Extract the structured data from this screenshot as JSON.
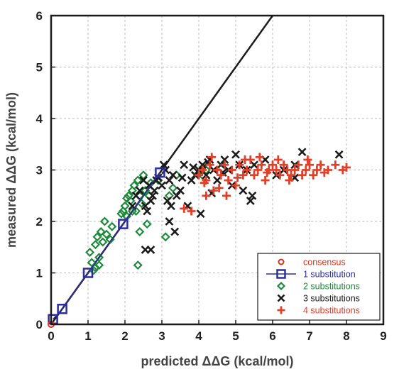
{
  "chart_data": {
    "type": "scatter",
    "xlabel": "predicted ΔΔG (kcal/mol)",
    "ylabel": "measured ΔΔG (kcal/mol)",
    "xlim": [
      0,
      9
    ],
    "ylim": [
      0,
      6
    ],
    "xticks": [
      "0",
      "1",
      "2",
      "3",
      "4",
      "5",
      "6",
      "7",
      "8",
      "9"
    ],
    "yticks": [
      "0",
      "1",
      "2",
      "3",
      "4",
      "5",
      "6"
    ],
    "grid": true,
    "legend_position": "bottom-right",
    "reference_line": {
      "from": [
        0,
        0
      ],
      "to": [
        6,
        6
      ],
      "color": "#1a1a1a"
    },
    "series": [
      {
        "name": "consensus",
        "marker": "circle",
        "color": "#d9331f",
        "points": [
          [
            0,
            0
          ]
        ]
      },
      {
        "name": "1 substitution",
        "marker": "square",
        "color": "#2d2d9f",
        "line": true,
        "points": [
          [
            0.05,
            0.1
          ],
          [
            0.3,
            0.3
          ],
          [
            1.0,
            1.0
          ],
          [
            1.95,
            1.95
          ],
          [
            2.95,
            2.95
          ]
        ]
      },
      {
        "name": "2 substitutions",
        "marker": "diamond",
        "color": "#1f8a3c",
        "points": [
          [
            1.05,
            1.4
          ],
          [
            1.1,
            1.2
          ],
          [
            1.15,
            1.05
          ],
          [
            1.2,
            1.55
          ],
          [
            1.25,
            1.7
          ],
          [
            1.3,
            1.3
          ],
          [
            1.35,
            1.8
          ],
          [
            1.4,
            1.6
          ],
          [
            1.45,
            2.0
          ],
          [
            1.5,
            1.75
          ],
          [
            1.6,
            1.65
          ],
          [
            1.65,
            1.9
          ],
          [
            1.2,
            1.1
          ],
          [
            1.3,
            1.15
          ],
          [
            1.9,
            2.15
          ],
          [
            2.0,
            2.3
          ],
          [
            2.05,
            2.1
          ],
          [
            2.1,
            2.5
          ],
          [
            2.15,
            2.4
          ],
          [
            2.2,
            2.6
          ],
          [
            2.25,
            2.7
          ],
          [
            2.3,
            2.2
          ],
          [
            2.35,
            2.8
          ],
          [
            2.4,
            2.5
          ],
          [
            2.5,
            2.9
          ],
          [
            2.55,
            2.6
          ],
          [
            2.6,
            1.95
          ],
          [
            2.4,
            1.8
          ],
          [
            2.35,
            1.15
          ],
          [
            2.45,
            2.35
          ],
          [
            2.7,
            2.75
          ],
          [
            2.9,
            2.8
          ],
          [
            3.1,
            1.7
          ],
          [
            3.2,
            2.5
          ],
          [
            3.3,
            2.65
          ],
          [
            3.4,
            2.9
          ],
          [
            4.1,
            2.9
          ],
          [
            4.2,
            3.0
          ],
          [
            2.2,
            2.2
          ],
          [
            2.05,
            2.45
          ],
          [
            1.95,
            2.2
          ],
          [
            2.65,
            2.5
          ]
        ]
      },
      {
        "name": "3 substitutions",
        "marker": "x",
        "color": "#1a1a1a",
        "points": [
          [
            2.2,
            2.3
          ],
          [
            2.3,
            2.5
          ],
          [
            2.4,
            2.6
          ],
          [
            2.5,
            2.8
          ],
          [
            2.55,
            2.3
          ],
          [
            2.6,
            2.2
          ],
          [
            2.65,
            2.7
          ],
          [
            2.7,
            2.4
          ],
          [
            2.75,
            2.5
          ],
          [
            2.8,
            2.6
          ],
          [
            2.85,
            2.8
          ],
          [
            2.9,
            2.85
          ],
          [
            3.0,
            2.7
          ],
          [
            3.1,
            3.0
          ],
          [
            3.15,
            2.4
          ],
          [
            3.2,
            2.8
          ],
          [
            3.3,
            2.9
          ],
          [
            3.4,
            2.5
          ],
          [
            3.5,
            2.6
          ],
          [
            3.6,
            3.1
          ],
          [
            3.7,
            2.3
          ],
          [
            3.8,
            2.8
          ],
          [
            3.9,
            2.9
          ],
          [
            4.0,
            3.0
          ],
          [
            4.1,
            3.1
          ],
          [
            4.2,
            2.9
          ],
          [
            4.3,
            3.2
          ],
          [
            4.4,
            3.0
          ],
          [
            4.5,
            2.8
          ],
          [
            4.6,
            3.1
          ],
          [
            4.7,
            3.2
          ],
          [
            4.8,
            3.0
          ],
          [
            4.9,
            2.7
          ],
          [
            5.0,
            3.3
          ],
          [
            5.1,
            3.1
          ],
          [
            5.2,
            2.6
          ],
          [
            5.3,
            3.0
          ],
          [
            5.4,
            2.4
          ],
          [
            5.5,
            3.1
          ],
          [
            5.8,
            3.2
          ],
          [
            6.1,
            2.9
          ],
          [
            6.3,
            3.0
          ],
          [
            6.6,
            3.1
          ],
          [
            6.8,
            3.35
          ],
          [
            7.8,
            3.3
          ],
          [
            2.55,
            1.45
          ],
          [
            2.7,
            1.45
          ],
          [
            3.2,
            2.0
          ],
          [
            3.35,
            1.8
          ],
          [
            4.05,
            2.15
          ],
          [
            4.35,
            2.55
          ],
          [
            5.45,
            2.5
          ],
          [
            6.6,
            2.85
          ],
          [
            3.05,
            3.1
          ],
          [
            3.25,
            2.3
          ],
          [
            3.55,
            2.85
          ],
          [
            3.85,
            3.05
          ],
          [
            4.25,
            3.15
          ],
          [
            4.65,
            2.95
          ]
        ]
      },
      {
        "name": "4 substitutions",
        "marker": "plus",
        "color": "#e0402a",
        "points": [
          [
            3.6,
            2.25
          ],
          [
            3.8,
            2.2
          ],
          [
            4.0,
            2.9
          ],
          [
            4.1,
            3.0
          ],
          [
            4.2,
            2.8
          ],
          [
            4.3,
            3.1
          ],
          [
            4.4,
            2.6
          ],
          [
            4.5,
            3.0
          ],
          [
            4.6,
            2.9
          ],
          [
            4.7,
            3.1
          ],
          [
            4.8,
            2.8
          ],
          [
            4.9,
            3.0
          ],
          [
            5.0,
            2.7
          ],
          [
            5.1,
            3.1
          ],
          [
            5.2,
            2.9
          ],
          [
            5.3,
            3.0
          ],
          [
            5.4,
            3.2
          ],
          [
            5.5,
            2.9
          ],
          [
            5.6,
            3.0
          ],
          [
            5.7,
            3.1
          ],
          [
            5.8,
            2.8
          ],
          [
            5.9,
            3.0
          ],
          [
            6.0,
            3.1
          ],
          [
            6.1,
            3.0
          ],
          [
            6.2,
            2.9
          ],
          [
            6.3,
            3.1
          ],
          [
            6.4,
            3.0
          ],
          [
            6.5,
            2.9
          ],
          [
            6.6,
            3.0
          ],
          [
            6.7,
            3.1
          ],
          [
            6.8,
            2.9
          ],
          [
            6.9,
            3.0
          ],
          [
            7.0,
            3.1
          ],
          [
            7.1,
            2.9
          ],
          [
            7.2,
            3.0
          ],
          [
            7.3,
            3.1
          ],
          [
            7.5,
            3.0
          ],
          [
            7.7,
            3.1
          ],
          [
            8.0,
            3.05
          ],
          [
            4.2,
            2.5
          ],
          [
            4.55,
            2.65
          ],
          [
            4.75,
            2.5
          ],
          [
            5.05,
            2.85
          ],
          [
            5.25,
            3.2
          ],
          [
            5.65,
            3.25
          ],
          [
            5.85,
            2.95
          ],
          [
            6.15,
            3.2
          ],
          [
            6.45,
            2.8
          ],
          [
            6.95,
            3.2
          ],
          [
            7.4,
            2.95
          ],
          [
            7.9,
            3.0
          ],
          [
            4.35,
            3.25
          ],
          [
            4.15,
            2.75
          ]
        ]
      }
    ]
  }
}
